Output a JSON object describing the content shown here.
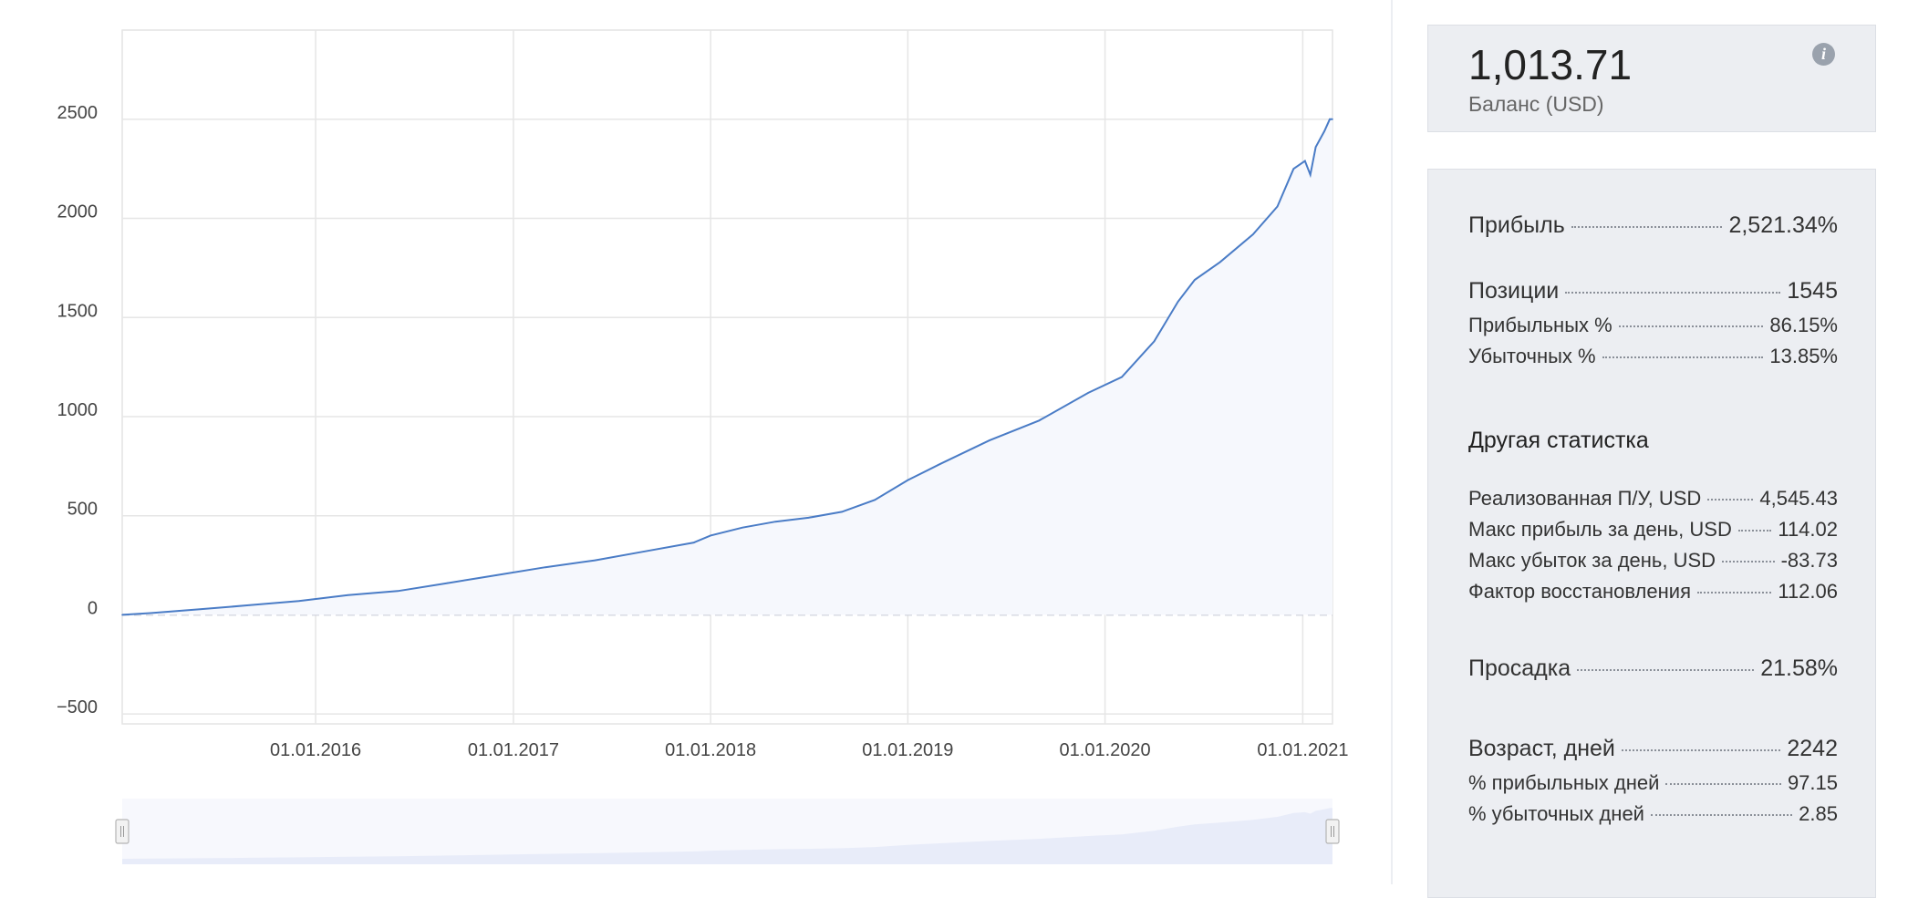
{
  "chart_data": {
    "type": "area",
    "y_ticks": [
      2500,
      2000,
      1500,
      1000,
      500,
      0,
      -500
    ],
    "y_tick_labels": [
      "2500",
      "2000",
      "1500",
      "1000",
      "500",
      "0",
      "−500"
    ],
    "x_ticks": [
      "2016-01-01",
      "2017-01-01",
      "2018-01-01",
      "2019-01-01",
      "2020-01-01",
      "2021-01-01"
    ],
    "x_tick_labels": [
      "01.01.2016",
      "01.01.2017",
      "01.01.2018",
      "01.01.2019",
      "01.01.2020",
      "01.01.2021"
    ],
    "x_range": [
      "2015-01-08",
      "2021-02-25"
    ],
    "ylim": [
      -550,
      2950
    ],
    "grid": true,
    "zero_line": "dashed",
    "series": [
      {
        "color": "#4a7cc6",
        "fill": "#f6f8fd",
        "points": [
          [
            "2015-01-08",
            0
          ],
          [
            "2015-03-01",
            9
          ],
          [
            "2015-06-01",
            28
          ],
          [
            "2015-09-01",
            49
          ],
          [
            "2015-12-01",
            70
          ],
          [
            "2016-03-01",
            100
          ],
          [
            "2016-06-01",
            120
          ],
          [
            "2016-09-01",
            160
          ],
          [
            "2016-12-01",
            200
          ],
          [
            "2017-03-01",
            240
          ],
          [
            "2017-06-01",
            275
          ],
          [
            "2017-09-01",
            320
          ],
          [
            "2017-12-01",
            365
          ],
          [
            "2018-01-01",
            400
          ],
          [
            "2018-03-01",
            440
          ],
          [
            "2018-05-01",
            470
          ],
          [
            "2018-07-01",
            490
          ],
          [
            "2018-09-01",
            520
          ],
          [
            "2018-11-01",
            580
          ],
          [
            "2019-01-01",
            680
          ],
          [
            "2019-03-01",
            760
          ],
          [
            "2019-06-01",
            880
          ],
          [
            "2019-09-01",
            980
          ],
          [
            "2019-12-01",
            1120
          ],
          [
            "2020-02-01",
            1200
          ],
          [
            "2020-04-01",
            1380
          ],
          [
            "2020-05-15",
            1580
          ],
          [
            "2020-06-15",
            1690
          ],
          [
            "2020-08-01",
            1780
          ],
          [
            "2020-10-01",
            1920
          ],
          [
            "2020-11-15",
            2060
          ],
          [
            "2020-12-15",
            2250
          ],
          [
            "2021-01-05",
            2290
          ],
          [
            "2021-01-15",
            2220
          ],
          [
            "2021-01-25",
            2360
          ],
          [
            "2021-02-10",
            2440
          ],
          [
            "2021-02-20",
            2500
          ],
          [
            "2021-02-25",
            2500
          ]
        ]
      }
    ]
  },
  "balance": {
    "value": "1,013.71",
    "label": "Баланс (USD)",
    "info_icon": "info-icon"
  },
  "stats": {
    "profit": {
      "label": "Прибыль",
      "value": "2,521.34%"
    },
    "positions": {
      "label": "Позиции",
      "value": "1545"
    },
    "profitable_pct": {
      "label": "Прибыльных %",
      "value": "86.15%"
    },
    "losing_pct": {
      "label": "Убыточных %",
      "value": "13.85%"
    },
    "other_title": "Другая статистка",
    "realized_pl": {
      "label": "Реализованная П/У, USD",
      "value": "4,545.43"
    },
    "max_profit_day": {
      "label": "Макс прибыль за день, USD",
      "value": "114.02"
    },
    "max_loss_day": {
      "label": "Макс убыток за день, USD",
      "value": "-83.73"
    },
    "recovery_factor": {
      "label": "Фактор восстановления",
      "value": "112.06"
    },
    "drawdown": {
      "label": "Просадка",
      "value": "21.58%"
    },
    "age_days": {
      "label": "Возраст, дней",
      "value": "2242"
    },
    "profitable_days": {
      "label": "% прибыльных дней",
      "value": "97.15"
    },
    "losing_days": {
      "label": "% убыточных дней",
      "value": "2.85"
    }
  },
  "colors": {
    "line": "#4a7cc6",
    "panel_bg": "#eceef2",
    "grid": "#e6e6e6",
    "navigator_fill": "#e8ecf9"
  }
}
